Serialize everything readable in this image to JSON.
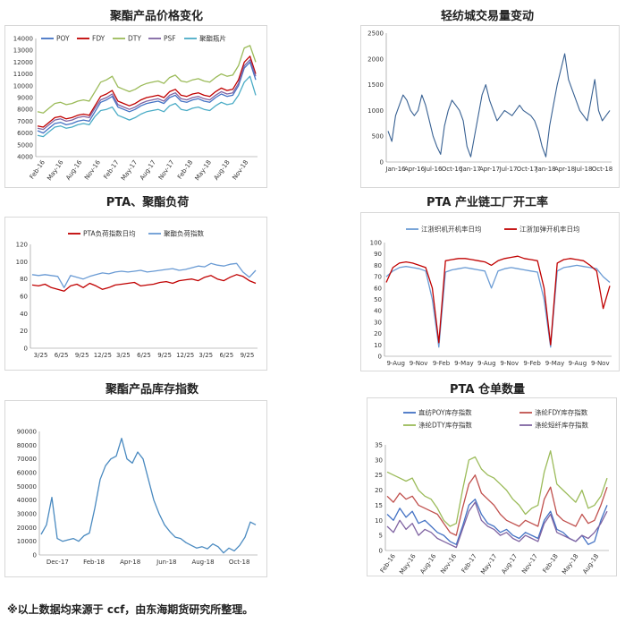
{
  "footnote": "※以上数据均来源于 ccf，由东海期货研究所整理。",
  "colors": {
    "blue": "#4472c4",
    "red": "#c00000",
    "green": "#9bbb59",
    "purple": "#8064a2",
    "cyan": "#4bacc6",
    "steel": "#376092",
    "lightblue": "#6a9bd4"
  },
  "chart_data": [
    {
      "id": "c1",
      "type": "line",
      "title": "聚酯产品价格变化",
      "xticks": [
        "Feb-16",
        "May-16",
        "Aug-16",
        "Nov-16",
        "Feb-17",
        "May-17",
        "Aug-17",
        "Nov-17",
        "Feb-18",
        "May-18",
        "Aug-18",
        "Nov-18"
      ],
      "yticks": [
        "4000",
        "5000",
        "6000",
        "7000",
        "8000",
        "9000",
        "10000",
        "11000",
        "12000",
        "13000",
        "14000"
      ],
      "ylim": [
        4000,
        14000
      ],
      "legend_position": "top",
      "series": [
        {
          "name": "POY",
          "color": "#4472c4",
          "values": [
            6200,
            6000,
            6400,
            6800,
            6900,
            6700,
            6800,
            7000,
            7100,
            7000,
            7800,
            8600,
            8800,
            9100,
            8200,
            8000,
            7800,
            8000,
            8300,
            8500,
            8600,
            8700,
            8500,
            9000,
            9200,
            8700,
            8600,
            8800,
            8900,
            8700,
            8600,
            9000,
            9300,
            9100,
            9200,
            10000,
            11500,
            12000,
            10500
          ]
        },
        {
          "name": "FDY",
          "color": "#c00000",
          "values": [
            6600,
            6500,
            6900,
            7300,
            7400,
            7200,
            7300,
            7500,
            7600,
            7500,
            8300,
            9100,
            9300,
            9600,
            8700,
            8500,
            8300,
            8500,
            8800,
            9000,
            9100,
            9200,
            9000,
            9500,
            9700,
            9200,
            9100,
            9300,
            9400,
            9200,
            9100,
            9500,
            9800,
            9600,
            9700,
            10500,
            12000,
            12500,
            11000
          ]
        },
        {
          "name": "DTY",
          "color": "#9bbb59",
          "values": [
            7800,
            7700,
            8100,
            8500,
            8600,
            8400,
            8500,
            8700,
            8800,
            8700,
            9500,
            10300,
            10500,
            10800,
            9900,
            9700,
            9500,
            9700,
            10000,
            10200,
            10300,
            10400,
            10200,
            10700,
            10900,
            10400,
            10300,
            10500,
            10600,
            10400,
            10300,
            10700,
            11000,
            10800,
            10900,
            11700,
            13200,
            13400,
            12000
          ]
        },
        {
          "name": "PSF",
          "color": "#8064a2",
          "values": [
            6400,
            6300,
            6700,
            7100,
            7200,
            7000,
            7100,
            7300,
            7400,
            7300,
            8100,
            8800,
            9000,
            9300,
            8400,
            8200,
            8000,
            8200,
            8500,
            8700,
            8800,
            8900,
            8700,
            9200,
            9400,
            8900,
            8800,
            9000,
            9100,
            8900,
            8800,
            9200,
            9500,
            9300,
            9400,
            10200,
            11700,
            12200,
            10800
          ]
        },
        {
          "name": "聚酯瓶片",
          "color": "#4bacc6",
          "values": [
            5800,
            5700,
            6100,
            6500,
            6600,
            6400,
            6500,
            6700,
            6800,
            6700,
            7400,
            7900,
            8000,
            8200,
            7500,
            7300,
            7100,
            7300,
            7600,
            7800,
            7900,
            8000,
            7800,
            8300,
            8500,
            8000,
            7900,
            8100,
            8200,
            8000,
            7900,
            8300,
            8600,
            8400,
            8500,
            9200,
            10300,
            10800,
            9200
          ]
        }
      ]
    },
    {
      "id": "c2",
      "type": "line",
      "title": "轻纺城交易量变动",
      "xticks": [
        "Jan-16",
        "Apr-16",
        "Jul-16",
        "Oct-16",
        "Jan-17",
        "Apr-17",
        "Jul-17",
        "Oct-17",
        "Jan-18",
        "Apr-18",
        "Jul-18",
        "Oct-18"
      ],
      "yticks": [
        "0",
        "500",
        "1000",
        "1500",
        "2000",
        "2500"
      ],
      "ylim": [
        0,
        2500
      ],
      "series": [
        {
          "name": "",
          "color": "#376092",
          "values": [
            600,
            400,
            900,
            1100,
            1300,
            1200,
            1000,
            900,
            1000,
            1300,
            1100,
            800,
            500,
            300,
            150,
            700,
            1000,
            1200,
            1100,
            1000,
            800,
            300,
            100,
            500,
            900,
            1300,
            1500,
            1200,
            1000,
            800,
            900,
            1000,
            950,
            900,
            1000,
            1100,
            1000,
            950,
            900,
            800,
            600,
            300,
            100,
            700,
            1100,
            1500,
            1800,
            2100,
            1600,
            1400,
            1200,
            1000,
            900,
            800,
            1200,
            1600,
            1000,
            800,
            900,
            1000
          ]
        }
      ]
    },
    {
      "id": "c3",
      "type": "line",
      "title": "PTA、聚酯负荷",
      "xticks": [
        "3/25",
        "6/25",
        "9/25",
        "12/25",
        "3/25",
        "6/25",
        "9/25",
        "12/25",
        "3/25",
        "6/25",
        "9/25"
      ],
      "yticks": [
        "0",
        "20",
        "40",
        "60",
        "80",
        "100",
        "120"
      ],
      "ylim": [
        0,
        120
      ],
      "legend_position": "top",
      "series": [
        {
          "name": "PTA负荷指数日均",
          "color": "#c00000",
          "values": [
            73,
            72,
            74,
            70,
            68,
            66,
            72,
            74,
            70,
            75,
            72,
            68,
            70,
            73,
            74,
            75,
            76,
            72,
            73,
            74,
            76,
            77,
            75,
            78,
            79,
            80,
            78,
            82,
            84,
            80,
            78,
            82,
            85,
            83,
            78,
            75
          ]
        },
        {
          "name": "聚酯负荷指数",
          "color": "#6a9bd4",
          "values": [
            85,
            84,
            85,
            84,
            83,
            70,
            84,
            82,
            80,
            83,
            85,
            87,
            86,
            88,
            89,
            88,
            89,
            90,
            88,
            89,
            90,
            91,
            92,
            90,
            91,
            93,
            95,
            94,
            98,
            96,
            95,
            97,
            98,
            88,
            82,
            90
          ]
        }
      ]
    },
    {
      "id": "c4",
      "type": "line",
      "title": "PTA 产业链工厂开工率",
      "xticks": [
        "9-Aug",
        "9-Nov",
        "9-Feb",
        "9-May",
        "9-Aug",
        "9-Nov",
        "9-Feb",
        "9-May",
        "9-Aug",
        "9-Nov"
      ],
      "yticks": [
        "0",
        "10",
        "20",
        "30",
        "40",
        "50",
        "60",
        "70",
        "80",
        "90",
        "100"
      ],
      "ylim": [
        0,
        100
      ],
      "legend_position": "top",
      "series": [
        {
          "name": "江浙织机开机率日均",
          "color": "#6a9bd4",
          "values": [
            70,
            75,
            78,
            79,
            78,
            77,
            75,
            50,
            8,
            74,
            76,
            77,
            78,
            77,
            76,
            75,
            60,
            75,
            77,
            78,
            77,
            76,
            75,
            74,
            50,
            8,
            75,
            78,
            79,
            80,
            79,
            78,
            77,
            70,
            65
          ]
        },
        {
          "name": "江浙加弹开机率日均",
          "color": "#c00000",
          "values": [
            65,
            78,
            82,
            83,
            82,
            80,
            78,
            60,
            12,
            84,
            85,
            86,
            86,
            85,
            84,
            83,
            80,
            84,
            86,
            87,
            88,
            86,
            85,
            84,
            60,
            10,
            82,
            85,
            86,
            85,
            84,
            80,
            75,
            42,
            62
          ]
        }
      ]
    },
    {
      "id": "c5",
      "type": "line",
      "title": "聚酯产品库存指数",
      "xticks": [
        "Dec-17",
        "Feb-18",
        "Apr-18",
        "Jun-18",
        "Aug-18",
        "Oct-18"
      ],
      "yticks": [
        "0",
        "10000",
        "20000",
        "30000",
        "40000",
        "50000",
        "60000",
        "70000",
        "80000",
        "90000"
      ],
      "ylim": [
        0,
        90000
      ],
      "series": [
        {
          "name": "",
          "color": "#4a8ac0",
          "values": [
            15000,
            22000,
            42000,
            12000,
            10000,
            11000,
            12000,
            10000,
            14000,
            16000,
            34000,
            55000,
            65000,
            70000,
            72000,
            85000,
            70000,
            67000,
            75000,
            70000,
            55000,
            40000,
            30000,
            22000,
            17000,
            13000,
            12000,
            9000,
            7000,
            5000,
            6000,
            4500,
            8000,
            6000,
            1500,
            5000,
            3000,
            7000,
            13000,
            24000,
            22000
          ]
        }
      ]
    },
    {
      "id": "c6",
      "type": "line",
      "title": "PTA 仓单数量",
      "xticks": [
        "Feb-16",
        "May-16",
        "Aug-16",
        "Nov-16",
        "Feb-17",
        "May-17",
        "Aug-17",
        "Nov-17",
        "Feb-18",
        "May-18",
        "Aug-18"
      ],
      "yticks": [
        "0",
        "5",
        "10",
        "15",
        "20",
        "25",
        "30",
        "35"
      ],
      "ylim": [
        0,
        35
      ],
      "legend_position": "top",
      "series": [
        {
          "name": "直纺POY库存指数",
          "color": "#4472c4",
          "values": [
            12,
            10,
            14,
            11,
            13,
            9,
            10,
            8,
            6,
            5,
            3,
            2,
            8,
            15,
            17,
            12,
            9,
            8,
            6,
            7,
            5,
            4,
            6,
            5,
            4,
            10,
            13,
            7,
            6,
            4,
            3,
            5,
            2,
            3,
            10,
            15
          ]
        },
        {
          "name": "涤纶FDY库存指数",
          "color": "#c0504d",
          "values": [
            18,
            16,
            19,
            17,
            18,
            15,
            14,
            13,
            12,
            9,
            6,
            5,
            14,
            22,
            25,
            19,
            17,
            15,
            12,
            10,
            9,
            8,
            10,
            9,
            8,
            17,
            21,
            12,
            10,
            9,
            8,
            12,
            9,
            10,
            15,
            21
          ]
        },
        {
          "name": "涤纶DTY库存指数",
          "color": "#9bbb59",
          "values": [
            26,
            25,
            24,
            23,
            24,
            20,
            18,
            17,
            14,
            10,
            8,
            9,
            20,
            30,
            31,
            27,
            25,
            24,
            22,
            20,
            17,
            15,
            12,
            14,
            15,
            26,
            33,
            22,
            20,
            18,
            16,
            20,
            14,
            15,
            18,
            24
          ]
        },
        {
          "name": "涤纶短纤库存指数",
          "color": "#8064a2",
          "values": [
            8,
            6,
            10,
            7,
            9,
            5,
            7,
            6,
            4,
            3,
            2,
            1,
            7,
            13,
            16,
            10,
            8,
            7,
            5,
            6,
            4,
            3,
            5,
            4,
            3,
            9,
            12,
            6,
            5,
            4,
            3,
            5,
            4,
            6,
            9,
            13
          ]
        }
      ]
    }
  ]
}
